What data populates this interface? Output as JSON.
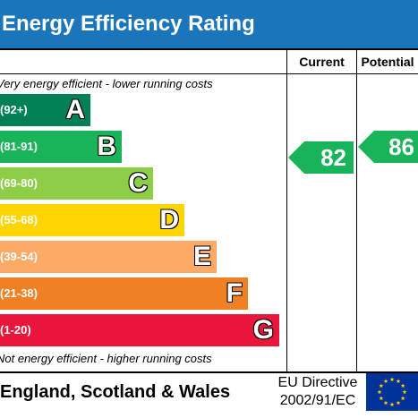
{
  "header": {
    "title": "Energy Efficiency Rating"
  },
  "columns": {
    "current": "Current",
    "potential": "Potential"
  },
  "notes": {
    "top": "Very energy efficient - lower running costs",
    "bottom": "Not energy efficient - higher running costs"
  },
  "bands": [
    {
      "range": "(92+)",
      "letter": "A",
      "color": "#008054"
    },
    {
      "range": "(81-91)",
      "letter": "B",
      "color": "#19b459"
    },
    {
      "range": "(69-80)",
      "letter": "C",
      "color": "#8dce46"
    },
    {
      "range": "(55-68)",
      "letter": "D",
      "color": "#ffd500"
    },
    {
      "range": "(39-54)",
      "letter": "E",
      "color": "#fcaa65"
    },
    {
      "range": "(21-38)",
      "letter": "F",
      "color": "#ef8023"
    },
    {
      "range": "(1-20)",
      "letter": "G",
      "color": "#e9153b"
    }
  ],
  "ratings": {
    "current": {
      "value": "82",
      "band": "B",
      "color": "#19b459"
    },
    "potential": {
      "value": "86",
      "band": "B",
      "color": "#19b459"
    }
  },
  "footer": {
    "country": "England, Scotland & Wales",
    "directive_line1": "EU Directive",
    "directive_line2": "2002/91/EC",
    "flag_icon": "eu-flag-icon",
    "flag_color": "#003399",
    "star_color": "#ffcc00"
  }
}
